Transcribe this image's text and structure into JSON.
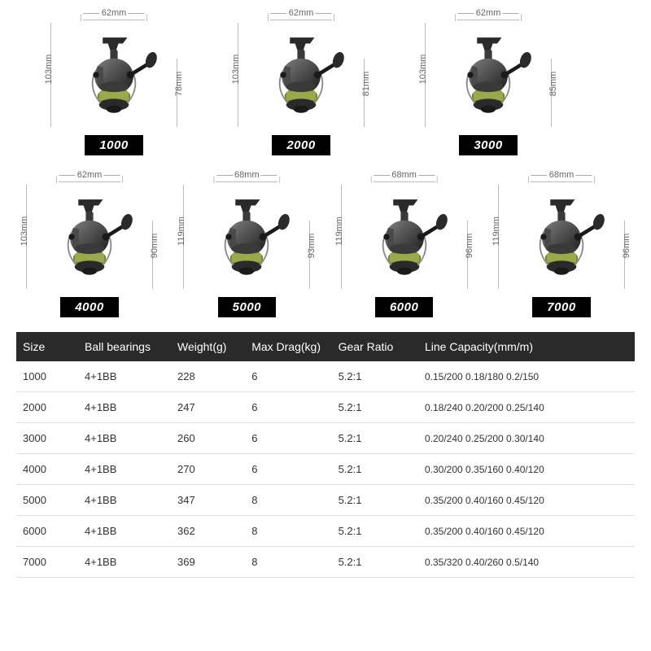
{
  "products": [
    {
      "model": "1000",
      "top_mm": "62mm",
      "left_mm": "103mm",
      "right_mm": "78mm"
    },
    {
      "model": "2000",
      "top_mm": "62mm",
      "left_mm": "103mm",
      "right_mm": "81mm"
    },
    {
      "model": "3000",
      "top_mm": "62mm",
      "left_mm": "103mm",
      "right_mm": "85mm"
    },
    {
      "model": "4000",
      "top_mm": "62mm",
      "left_mm": "103mm",
      "right_mm": "90mm"
    },
    {
      "model": "5000",
      "top_mm": "68mm",
      "left_mm": "119mm",
      "right_mm": "93mm"
    },
    {
      "model": "6000",
      "top_mm": "68mm",
      "left_mm": "119mm",
      "right_mm": "96mm"
    },
    {
      "model": "7000",
      "top_mm": "68mm",
      "left_mm": "119mm",
      "right_mm": "96mm"
    }
  ],
  "table": {
    "columns": [
      "Size",
      "Ball bearings",
      "Weight(g)",
      "Max Drag(kg)",
      "Gear Ratio",
      "Line Capacity(mm/m)"
    ],
    "col_widths_pct": [
      10,
      15,
      12,
      14,
      14,
      35
    ],
    "header_bg": "#2a2a2a",
    "header_color": "#ffffff",
    "row_border": "#dddddd",
    "rows": [
      [
        "1000",
        "4+1BB",
        "228",
        "6",
        "5.2:1",
        "0.15/200 0.18/180 0.2/150"
      ],
      [
        "2000",
        "4+1BB",
        "247",
        "6",
        "5.2:1",
        "0.18/240 0.20/200 0.25/140"
      ],
      [
        "3000",
        "4+1BB",
        "260",
        "6",
        "5.2:1",
        "0.20/240 0.25/200 0.30/140"
      ],
      [
        "4000",
        "4+1BB",
        "270",
        "6",
        "5.2:1",
        "0.30/200 0.35/160 0.40/120"
      ],
      [
        "5000",
        "4+1BB",
        "347",
        "8",
        "5.2:1",
        "0.35/200 0.40/160 0.45/120"
      ],
      [
        "6000",
        "4+1BB",
        "362",
        "8",
        "5.2:1",
        "0.35/200 0.40/160 0.45/120"
      ],
      [
        "7000",
        "4+1BB",
        "369",
        "8",
        "5.2:1",
        "0.35/320 0.40/260 0.5/140"
      ]
    ]
  },
  "reel_svg_colors": {
    "body": "#2a2a2a",
    "body_light": "#4a4a4a",
    "spool": "#8a9a3a",
    "spool_dark": "#6b7a2e",
    "handle": "#1a1a1a",
    "knob": "#2a2a2a",
    "guide_line": "#bbbbbb"
  },
  "label_font_size": 11,
  "label_color": "#666666",
  "badge_bg": "#000000",
  "badge_color": "#ffffff",
  "page_bg": "#ffffff"
}
